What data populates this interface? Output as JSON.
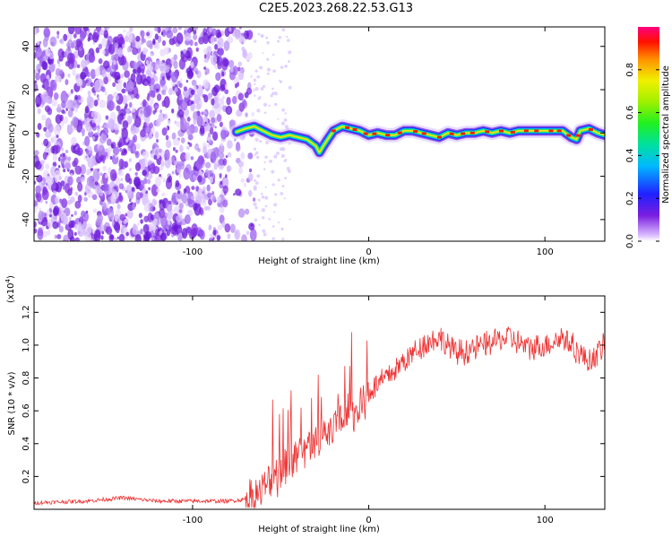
{
  "title": "C2E5.2023.268.22.53.G13",
  "chart_data": [
    {
      "type": "heatmap",
      "xlabel": "Height of straight line (km)",
      "ylabel": "Frequency (Hz)",
      "xlim": [
        -190,
        134
      ],
      "ylim": [
        -50,
        49
      ],
      "xticks": [
        -100,
        0,
        100
      ],
      "yticks": [
        -40,
        -20,
        0,
        20,
        40
      ],
      "grid": false,
      "noise_region_x": [
        -190,
        -65
      ],
      "doppler_trace": {
        "x": [
          -75,
          -70,
          -65,
          -60,
          -55,
          -50,
          -45,
          -40,
          -35,
          -30,
          -28,
          -25,
          -20,
          -15,
          -10,
          -5,
          0,
          5,
          10,
          15,
          20,
          25,
          30,
          35,
          40,
          45,
          50,
          55,
          60,
          65,
          70,
          75,
          80,
          85,
          90,
          95,
          100,
          105,
          110,
          115,
          118,
          120,
          125,
          130,
          134
        ],
        "y": [
          0.5,
          2,
          3,
          1,
          -1,
          -2,
          -1,
          -2,
          -3,
          -6,
          -9,
          -5,
          1,
          3,
          2,
          1,
          -1,
          0,
          -1,
          -1,
          1,
          1,
          0,
          -1,
          -2,
          0,
          -1,
          0,
          0,
          1,
          0,
          1,
          0,
          1,
          1,
          1,
          1,
          1,
          1,
          -2,
          -3,
          1,
          2,
          0,
          -1
        ]
      },
      "colorbar": {
        "label": "Normalized spectral amplitude",
        "range": [
          0,
          1
        ],
        "ticks": [
          "0.0",
          "0.2",
          "0.4",
          "0.6",
          "0.8"
        ]
      }
    },
    {
      "type": "line",
      "xlabel": "Height of straight line (km)",
      "ylabel": "SNR (10 * v/v)",
      "y_multiplier": "(x10",
      "y_multiplier_exp": "4",
      "y_multiplier_close": ")",
      "xlim": [
        -190,
        134
      ],
      "ylim": [
        0,
        1.3
      ],
      "xticks": [
        -100,
        0,
        100
      ],
      "yticks": [
        0.2,
        0.4,
        0.6,
        0.8,
        1.0,
        1.2
      ],
      "ytick_labels": [
        "0.2",
        "0.4",
        "0.6",
        "0.8",
        "1.0",
        "1.2"
      ],
      "series": [
        {
          "color": "#ee3333",
          "x": [
            -190,
            -160,
            -140,
            -120,
            -100,
            -80,
            -70,
            -65,
            -60,
            -55,
            -50,
            -45,
            -40,
            -35,
            -30,
            -25,
            -20,
            -15,
            -10,
            -5,
            0,
            10,
            20,
            30,
            40,
            50,
            60,
            70,
            80,
            90,
            100,
            110,
            120,
            125,
            130,
            134
          ],
          "y": [
            0.04,
            0.05,
            0.07,
            0.05,
            0.05,
            0.05,
            0.06,
            0.08,
            0.12,
            0.18,
            0.22,
            0.28,
            0.32,
            0.38,
            0.4,
            0.45,
            0.48,
            0.6,
            0.55,
            0.62,
            0.72,
            0.8,
            0.9,
            1.0,
            1.05,
            0.95,
            0.98,
            1.02,
            1.05,
            0.98,
            1.0,
            1.05,
            0.95,
            0.9,
            0.95,
            1.0
          ]
        }
      ]
    }
  ]
}
